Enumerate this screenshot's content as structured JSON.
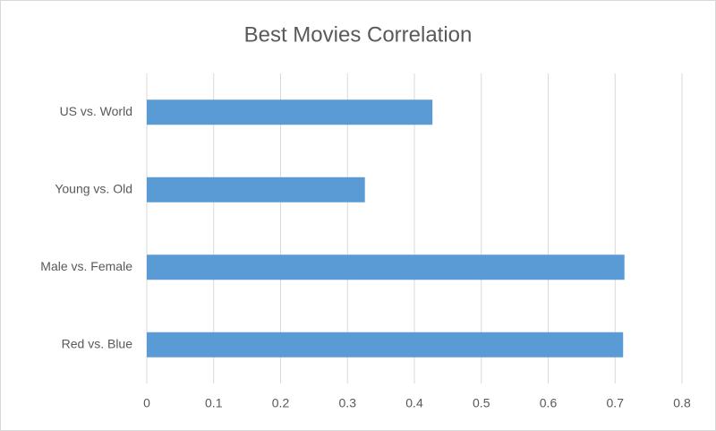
{
  "chart_data": {
    "type": "bar",
    "orientation": "horizontal",
    "title": "Best Movies Correlation",
    "categories": [
      "US vs. World",
      "Young vs. Old",
      "Male vs. Female",
      "Red vs. Blue"
    ],
    "values": [
      0.427,
      0.326,
      0.714,
      0.712
    ],
    "color": "#5b9bd5",
    "xlim": [
      0,
      0.8
    ],
    "xticks": [
      0,
      0.1,
      0.2,
      0.3,
      0.4,
      0.5,
      0.6,
      0.7,
      0.8
    ],
    "grid": true
  }
}
